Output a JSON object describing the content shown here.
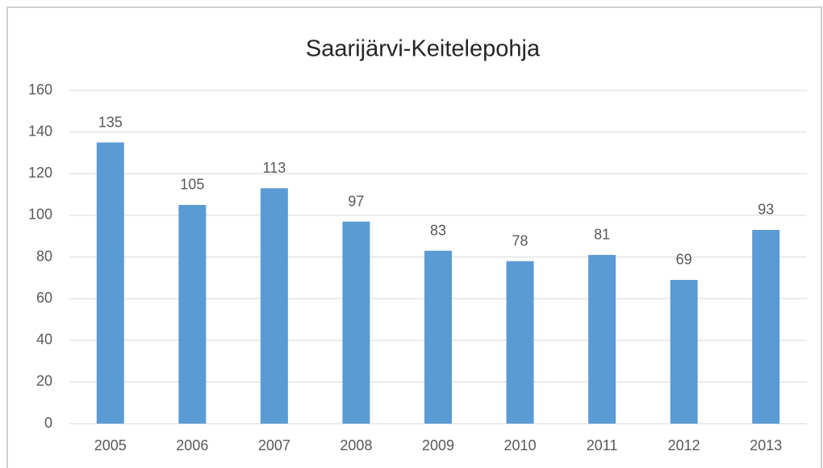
{
  "chart_data": {
    "type": "bar",
    "title": "Saarijärvi-Keitelepohja",
    "categories": [
      "2005",
      "2006",
      "2007",
      "2008",
      "2009",
      "2010",
      "2011",
      "2012",
      "2013"
    ],
    "values": [
      135,
      105,
      113,
      97,
      83,
      78,
      81,
      69,
      93
    ],
    "color": "#5b9bd5",
    "ylim": [
      0,
      160
    ],
    "yticks": [
      0,
      20,
      40,
      60,
      80,
      100,
      120,
      140,
      160
    ],
    "grid": true
  }
}
